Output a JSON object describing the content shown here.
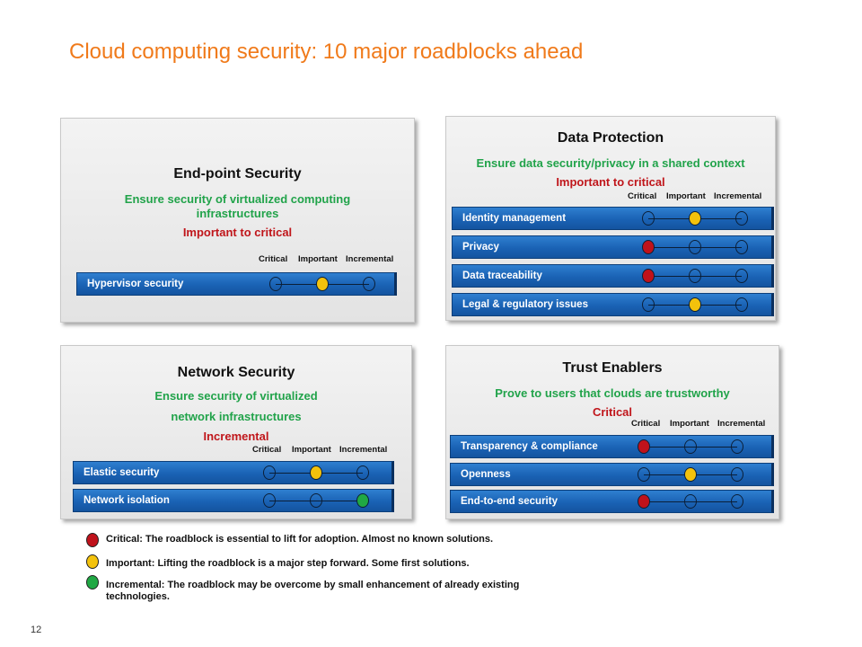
{
  "title": "Cloud computing security: 10 major roadblocks ahead",
  "page_number": "12",
  "scale_labels": {
    "critical": "Critical",
    "important": "Important",
    "incremental": "Incremental"
  },
  "colors": {
    "critical": "#c0121b",
    "important": "#f3c20c",
    "incremental": "#20a844",
    "title": "#f07a1a",
    "goal": "#21a34a",
    "level": "#c0161b"
  },
  "panels": [
    {
      "id": "endpoint",
      "title": "End-point Security",
      "goal": "Ensure security of virtualized computing infrastructures",
      "level": "Important to critical",
      "roadblocks": [
        {
          "label": "Hypervisor security",
          "rating": "important"
        }
      ]
    },
    {
      "id": "data",
      "title": "Data Protection",
      "goal": "Ensure data security/privacy in a shared context",
      "level": "Important to critical",
      "roadblocks": [
        {
          "label": "Identity management",
          "rating": "important"
        },
        {
          "label": "Privacy",
          "rating": "critical"
        },
        {
          "label": "Data traceability",
          "rating": "critical"
        },
        {
          "label": "Legal & regulatory issues",
          "rating": "important"
        }
      ]
    },
    {
      "id": "network",
      "title": "Network Security",
      "goal": "Ensure security of virtualized network infrastructures",
      "goal_lines": [
        "Ensure security of virtualized",
        "network infrastructures"
      ],
      "level": "Incremental",
      "roadblocks": [
        {
          "label": "Elastic security",
          "rating": "important"
        },
        {
          "label": "Network isolation",
          "rating": "incremental"
        }
      ]
    },
    {
      "id": "trust",
      "title": "Trust Enablers",
      "goal": "Prove to users that clouds are trustworthy",
      "level": "Critical",
      "roadblocks": [
        {
          "label": "Transparency  & compliance",
          "rating": "critical"
        },
        {
          "label": "Openness",
          "rating": "important"
        },
        {
          "label": "End-to-end security",
          "rating": "critical"
        }
      ]
    }
  ],
  "legend": [
    {
      "rating": "critical",
      "text": "Critical:  The roadblock is essential to lift for adoption. Almost no known solutions."
    },
    {
      "rating": "important",
      "text": "Important: Lifting the roadblock is a major step forward. Some first solutions."
    },
    {
      "rating": "incremental",
      "text": "Incremental: The roadblock may be overcome by small enhancement of already existing technologies."
    }
  ]
}
